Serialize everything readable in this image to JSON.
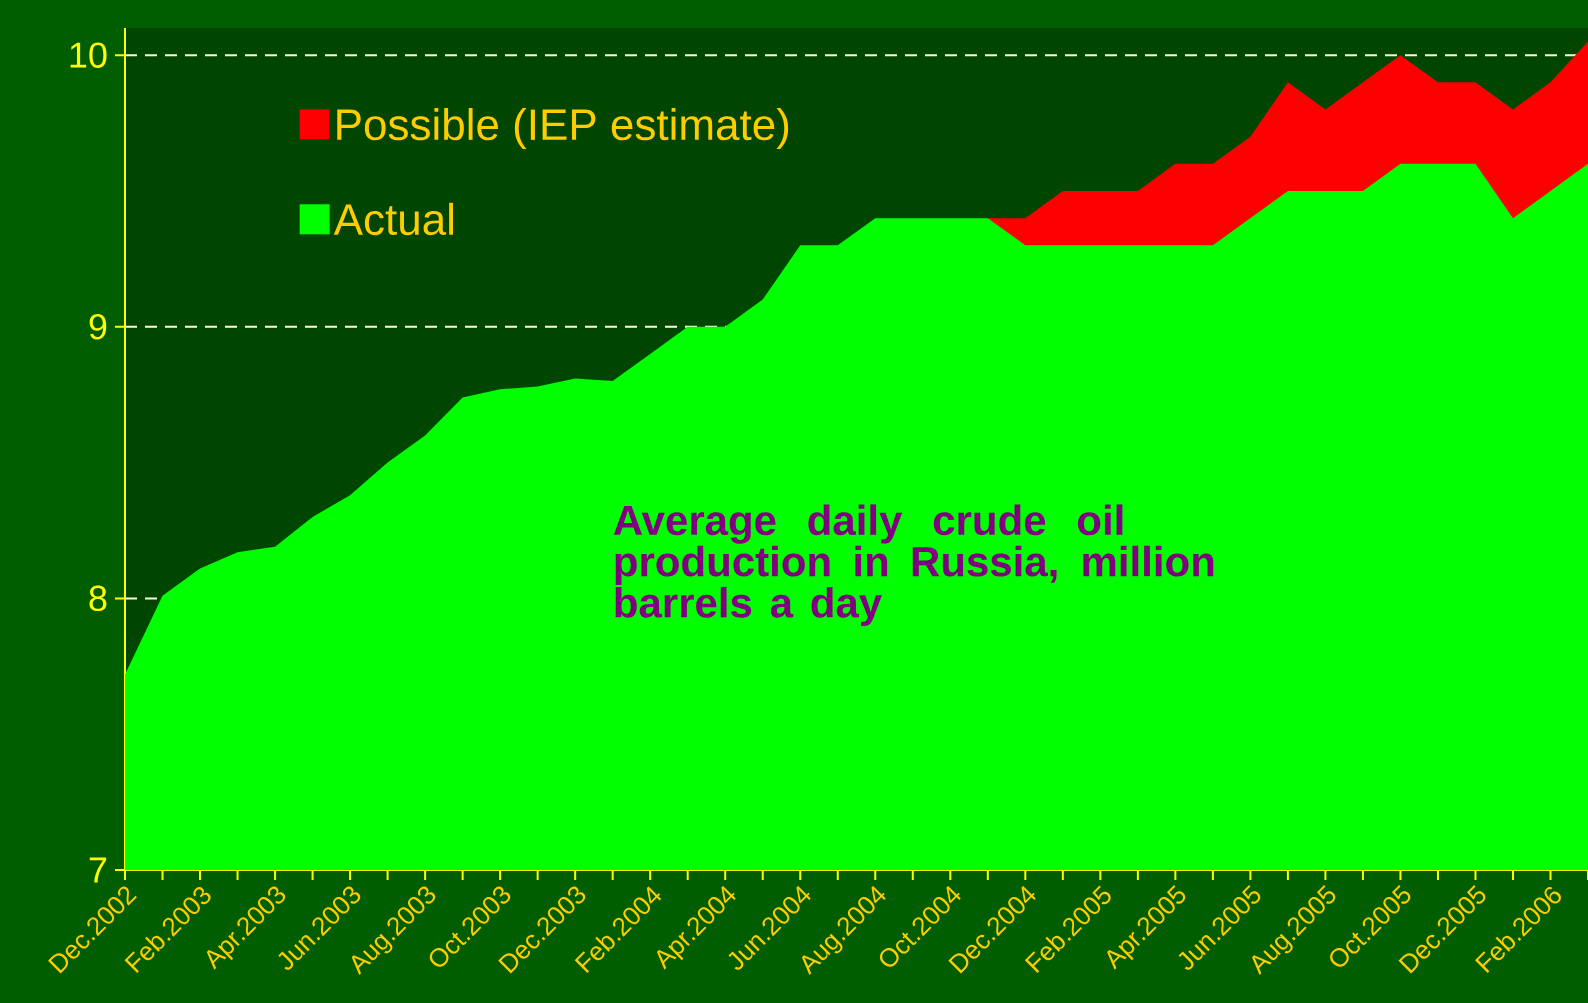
{
  "chart_data": {
    "type": "area",
    "categories": [
      "Dec.2002",
      null,
      "Feb.2003",
      null,
      "Apr.2003",
      null,
      "Jun.2003",
      null,
      "Aug.2003",
      null,
      "Oct.2003",
      null,
      "Dec.2003",
      null,
      "Feb.2004",
      null,
      "Apr.2004",
      null,
      "Jun.2004",
      null,
      "Aug.2004",
      null,
      "Oct.2004",
      null,
      "Dec.2004",
      null,
      "Feb.2005",
      null,
      "Apr.2005",
      null,
      "Jun.2005",
      null,
      "Aug.2005",
      null,
      "Oct.2005",
      null,
      "Dec.2005",
      null,
      "Feb.2006",
      null
    ],
    "series": [
      {
        "name": "Possible (IEP estimate)",
        "color": "#ff0000",
        "values": [
          null,
          null,
          null,
          null,
          null,
          null,
          null,
          null,
          null,
          null,
          null,
          null,
          null,
          null,
          null,
          null,
          null,
          null,
          null,
          null,
          null,
          null,
          null,
          9.4,
          9.4,
          9.5,
          9.5,
          9.5,
          9.6,
          9.6,
          9.7,
          9.9,
          9.8,
          9.9,
          10.0,
          9.9,
          9.9,
          9.8,
          9.9,
          10.05
        ]
      },
      {
        "name": "Actual",
        "color": "#00ff00",
        "values": [
          7.72,
          8.01,
          8.11,
          8.17,
          8.19,
          8.3,
          8.38,
          8.5,
          8.6,
          8.74,
          8.77,
          8.78,
          8.81,
          8.8,
          8.9,
          9.0,
          9.0,
          9.1,
          9.3,
          9.3,
          9.4,
          9.4,
          9.4,
          9.4,
          9.3,
          9.3,
          9.3,
          9.3,
          9.3,
          9.3,
          9.4,
          9.5,
          9.5,
          9.5,
          9.6,
          9.6,
          9.6,
          9.4,
          9.5,
          9.6
        ]
      }
    ],
    "ylim": [
      7,
      10.1
    ],
    "yticks": [
      7,
      8,
      9,
      10
    ],
    "grid": "y",
    "legend": "top left",
    "annotations": [
      "Average daily crude oil production in Russia, million barrels a day"
    ]
  }
}
